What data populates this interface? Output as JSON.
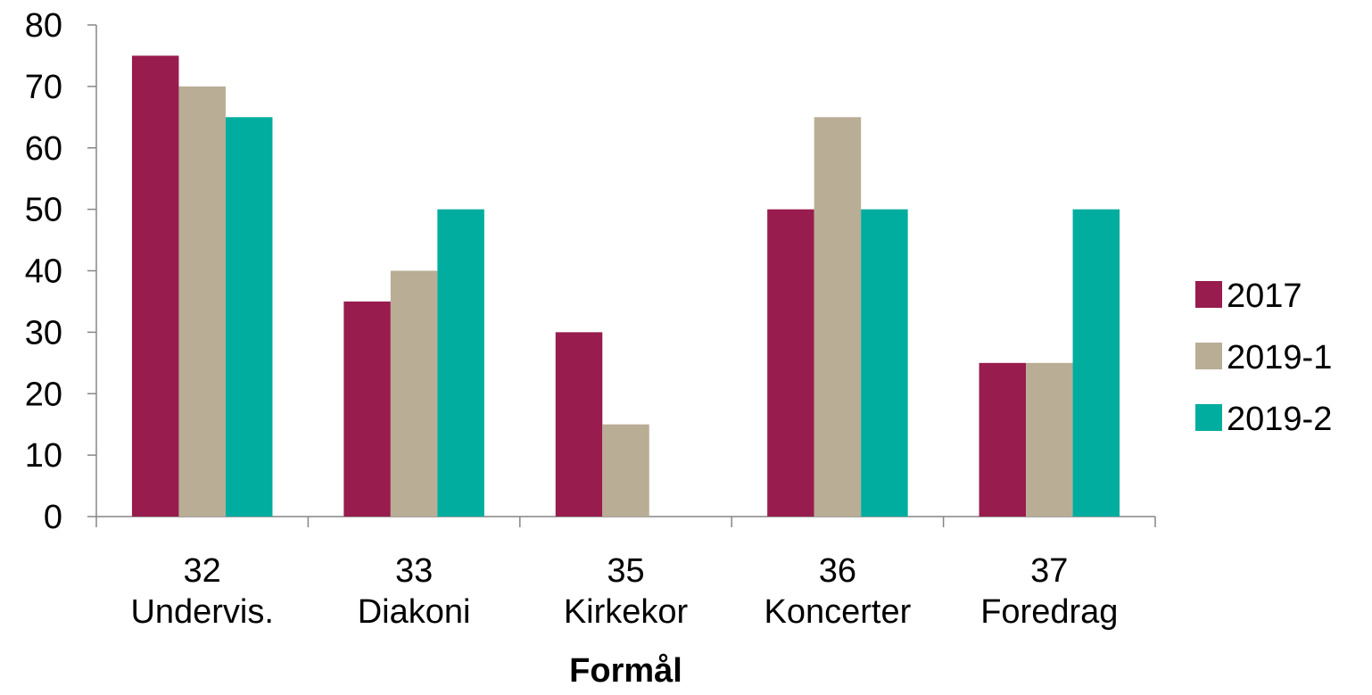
{
  "chart_data": {
    "type": "bar",
    "categories": [
      [
        "32",
        "Undervis."
      ],
      [
        "33",
        "Diakoni"
      ],
      [
        "35",
        "Kirkekor"
      ],
      [
        "36",
        "Koncerter"
      ],
      [
        "37",
        "Foredrag"
      ]
    ],
    "series": [
      {
        "name": "2017",
        "color": "#981C4E",
        "values": [
          75,
          35,
          30,
          50,
          25
        ]
      },
      {
        "name": "2019-1",
        "color": "#B9AD95",
        "values": [
          70,
          40,
          15,
          65,
          25
        ]
      },
      {
        "name": "2019-2",
        "color": "#00AD9E",
        "values": [
          65,
          50,
          0,
          50,
          50
        ]
      }
    ],
    "title": "",
    "xlabel": "Formål",
    "ylabel": "",
    "ylim": [
      0,
      80
    ],
    "yticks": [
      "0",
      "10",
      "20",
      "30",
      "40",
      "50",
      "60",
      "70",
      "80"
    ],
    "grid": false,
    "legend_position": "right"
  }
}
